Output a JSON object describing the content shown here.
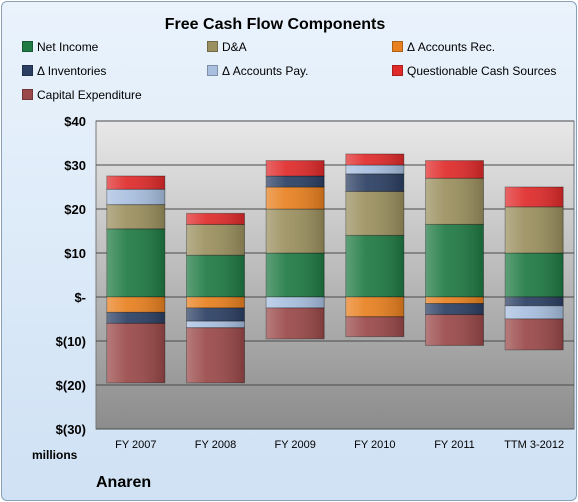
{
  "chart_data": {
    "type": "bar",
    "stacked": true,
    "title": "Free Cash Flow Components",
    "categories": [
      "FY 2007",
      "FY 2008",
      "FY 2009",
      "FY 2010",
      "FY 2011",
      "TTM 3-2012"
    ],
    "ylim": [
      -30,
      40
    ],
    "yticks": [
      40,
      30,
      20,
      10,
      0,
      -10,
      -20,
      -30
    ],
    "ytick_labels": [
      "$40",
      "$30",
      "$20",
      "$10",
      "$-",
      "$(10)",
      "$(20)",
      "$(30)"
    ],
    "ylabel_unit": "millions",
    "grid": true,
    "legend_position": "top",
    "series": [
      {
        "name": "Net Income",
        "color": "#1f7a43",
        "values": [
          15.5,
          9.5,
          10.0,
          14.0,
          16.5,
          10.0
        ]
      },
      {
        "name": "D&A",
        "color": "#9a8f5e",
        "values": [
          5.5,
          7.0,
          10.0,
          10.0,
          10.5,
          10.5
        ]
      },
      {
        "name": "Δ Accounts Rec.",
        "color": "#e8801f",
        "values": [
          -3.5,
          -2.5,
          5.0,
          -4.5,
          -1.5,
          0
        ]
      },
      {
        "name": "Δ Inventories",
        "color": "#2b3f63",
        "values": [
          -2.5,
          -3.0,
          2.5,
          4.0,
          -2.5,
          -2.0
        ]
      },
      {
        "name": "Δ Accounts Pay.",
        "color": "#a8bfdf",
        "values": [
          3.5,
          -1.5,
          -2.5,
          2.0,
          0,
          -3.0
        ]
      },
      {
        "name": "Questionable Cash Sources",
        "color": "#e02a2a",
        "values": [
          3.0,
          2.5,
          3.5,
          2.5,
          4.0,
          4.5
        ]
      },
      {
        "name": "Capital Expenditure",
        "color": "#9a4848",
        "values": [
          -13.5,
          -12.5,
          -7.0,
          -4.5,
          -7.0,
          -7.0
        ]
      }
    ]
  },
  "footer": {
    "company": "Anaren"
  }
}
